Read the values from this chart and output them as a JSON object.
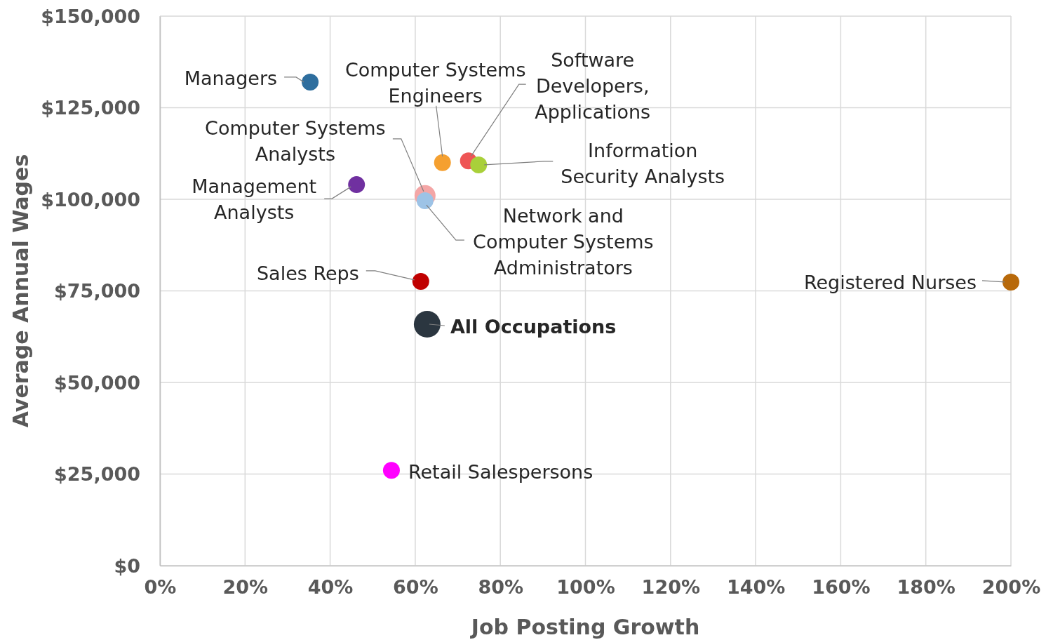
{
  "chart_data": {
    "type": "scatter",
    "xlabel": "Job Posting Growth",
    "ylabel": "Average Annual Wages",
    "grid": true,
    "marker": "circle",
    "xlim": [
      0,
      200
    ],
    "ylim": [
      0,
      150000
    ],
    "xticks": [
      {
        "value": 0,
        "label": "0%"
      },
      {
        "value": 20,
        "label": "20%"
      },
      {
        "value": 40,
        "label": "40%"
      },
      {
        "value": 60,
        "label": "60%"
      },
      {
        "value": 80,
        "label": "80%"
      },
      {
        "value": 100,
        "label": "100%"
      },
      {
        "value": 120,
        "label": "120%"
      },
      {
        "value": 140,
        "label": "140%"
      },
      {
        "value": 160,
        "label": "160%"
      },
      {
        "value": 180,
        "label": "180%"
      },
      {
        "value": 200,
        "label": "200%"
      }
    ],
    "yticks": [
      {
        "value": 0,
        "label": "$0"
      },
      {
        "value": 25000,
        "label": "$25,000"
      },
      {
        "value": 50000,
        "label": "$50,000"
      },
      {
        "value": 75000,
        "label": "$75,000"
      },
      {
        "value": 100000,
        "label": "$100,000"
      },
      {
        "value": 125000,
        "label": "$125,000"
      },
      {
        "value": 150000,
        "label": "$150,000"
      }
    ],
    "series": [
      {
        "name": "Managers",
        "color": "#2e6e9e",
        "x": [
          35.3
        ],
        "values": [
          132000
        ]
      },
      {
        "name": "Management Analysts",
        "color": "#7030a0",
        "x": [
          46.2
        ],
        "values": [
          104000
        ]
      },
      {
        "name": "Computer Systems Analysts",
        "color": "#f4a6a6",
        "x": [
          62.3
        ],
        "values": [
          101000
        ]
      },
      {
        "name": "Network and Computer Systems Administrators",
        "color": "#9dc3e6",
        "x": [
          62.3
        ],
        "values": [
          99600
        ]
      },
      {
        "name": "Computer Systems Engineers",
        "color": "#f5a030",
        "x": [
          66.4
        ],
        "values": [
          110000
        ]
      },
      {
        "name": "Software Developers, Applications",
        "color": "#ee5555",
        "x": [
          72.5
        ],
        "values": [
          110500
        ]
      },
      {
        "name": "Information Security Analysts",
        "color": "#a9d03a",
        "x": [
          74.9
        ],
        "values": [
          109400
        ]
      },
      {
        "name": "Sales Reps",
        "color": "#c00000",
        "x": [
          61.3
        ],
        "values": [
          77600
        ]
      },
      {
        "name": "All Occupations",
        "color": "#2b3640",
        "x": [
          62.8
        ],
        "values": [
          65900
        ]
      },
      {
        "name": "Retail Salespersons",
        "color": "#ff00ff",
        "x": [
          54.4
        ],
        "values": [
          26000
        ]
      },
      {
        "name": "Registered Nurses",
        "color": "#b8690a",
        "x": [
          200
        ],
        "values": [
          77400
        ]
      }
    ]
  }
}
